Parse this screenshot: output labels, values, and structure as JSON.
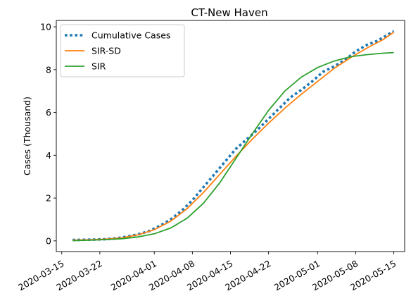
{
  "chart_data": {
    "type": "line",
    "title": "CT-New Haven",
    "xlabel": "",
    "ylabel": "Cases (Thousand)",
    "xlim": [
      "2020-03-14",
      "2020-05-17"
    ],
    "ylim": [
      -0.5,
      10.3
    ],
    "x_ticks": [
      "2020-03-15",
      "2020-03-22",
      "2020-04-01",
      "2020-04-08",
      "2020-04-15",
      "2020-04-22",
      "2020-05-01",
      "2020-05-08",
      "2020-05-15"
    ],
    "y_ticks": [
      0,
      2,
      4,
      6,
      8,
      10
    ],
    "grid": false,
    "legend_position": "upper-left",
    "series": [
      {
        "name": "Cumulative Cases",
        "color": "#1f77b4",
        "style": "dotted",
        "x": [
          "2020-03-17",
          "2020-03-19",
          "2020-03-21",
          "2020-03-23",
          "2020-03-25",
          "2020-03-27",
          "2020-03-29",
          "2020-03-31",
          "2020-04-02",
          "2020-04-04",
          "2020-04-06",
          "2020-04-08",
          "2020-04-10",
          "2020-04-12",
          "2020-04-14",
          "2020-04-16",
          "2020-04-18",
          "2020-04-20",
          "2020-04-22",
          "2020-04-24",
          "2020-04-26",
          "2020-04-28",
          "2020-04-30",
          "2020-05-02",
          "2020-05-04",
          "2020-05-06",
          "2020-05-08",
          "2020-05-10",
          "2020-05-12",
          "2020-05-14",
          "2020-05-15"
        ],
        "y": [
          0.04,
          0.05,
          0.06,
          0.08,
          0.12,
          0.2,
          0.3,
          0.45,
          0.7,
          1.0,
          1.4,
          1.9,
          2.5,
          3.1,
          3.7,
          4.3,
          4.75,
          5.2,
          5.7,
          6.2,
          6.7,
          7.05,
          7.45,
          7.9,
          8.15,
          8.45,
          8.85,
          9.15,
          9.35,
          9.65,
          9.8
        ]
      },
      {
        "name": "SIR-SD",
        "color": "#ff7f0e",
        "style": "solid",
        "x": [
          "2020-03-17",
          "2020-03-20",
          "2020-03-23",
          "2020-03-26",
          "2020-03-29",
          "2020-04-01",
          "2020-04-04",
          "2020-04-07",
          "2020-04-10",
          "2020-04-13",
          "2020-04-16",
          "2020-04-19",
          "2020-04-22",
          "2020-04-25",
          "2020-04-28",
          "2020-05-01",
          "2020-05-04",
          "2020-05-07",
          "2020-05-10",
          "2020-05-13",
          "2020-05-15"
        ],
        "y": [
          0.03,
          0.05,
          0.08,
          0.14,
          0.28,
          0.52,
          0.92,
          1.5,
          2.25,
          3.1,
          3.95,
          4.75,
          5.5,
          6.2,
          6.85,
          7.45,
          8.05,
          8.55,
          9.0,
          9.4,
          9.75
        ]
      },
      {
        "name": "SIR",
        "color": "#2ca02c",
        "style": "solid",
        "x": [
          "2020-03-17",
          "2020-03-20",
          "2020-03-23",
          "2020-03-26",
          "2020-03-29",
          "2020-04-01",
          "2020-04-04",
          "2020-04-07",
          "2020-04-10",
          "2020-04-13",
          "2020-04-16",
          "2020-04-19",
          "2020-04-22",
          "2020-04-25",
          "2020-04-28",
          "2020-05-01",
          "2020-05-04",
          "2020-05-07",
          "2020-05-10",
          "2020-05-13",
          "2020-05-15"
        ],
        "y": [
          0.01,
          0.03,
          0.06,
          0.1,
          0.18,
          0.33,
          0.6,
          1.05,
          1.75,
          2.7,
          3.85,
          5.0,
          6.1,
          7.0,
          7.65,
          8.1,
          8.4,
          8.6,
          8.7,
          8.77,
          8.8
        ]
      }
    ]
  }
}
